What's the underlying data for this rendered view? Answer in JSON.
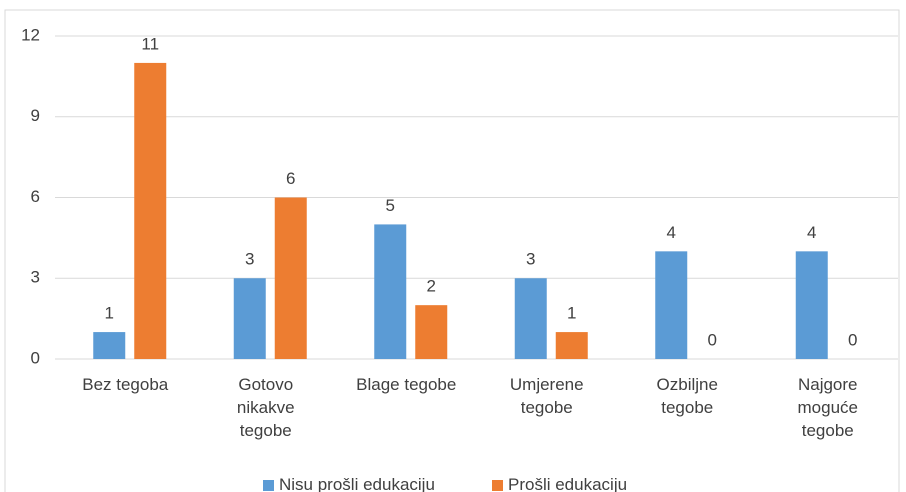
{
  "chart_data": {
    "type": "bar",
    "categories": [
      "Bez tegoba",
      "Gotovo\nnikakve\ntegobe",
      "Blage tegobe",
      "Umjerene\ntegobe",
      "Ozbiljne\ntegobe",
      "Najgore\nmoguće\ntegobe"
    ],
    "series": [
      {
        "name": "Nisu prošli edukaciju",
        "color": "#5b9bd5",
        "values": [
          1,
          3,
          5,
          3,
          4,
          4
        ]
      },
      {
        "name": "Prošli edukaciju",
        "color": "#ed7d31",
        "values": [
          11,
          6,
          2,
          1,
          0,
          0
        ]
      }
    ],
    "ylim": [
      0,
      12
    ],
    "yticks": [
      0,
      3,
      6,
      9,
      12
    ],
    "grid": true,
    "legend": "bottom"
  }
}
